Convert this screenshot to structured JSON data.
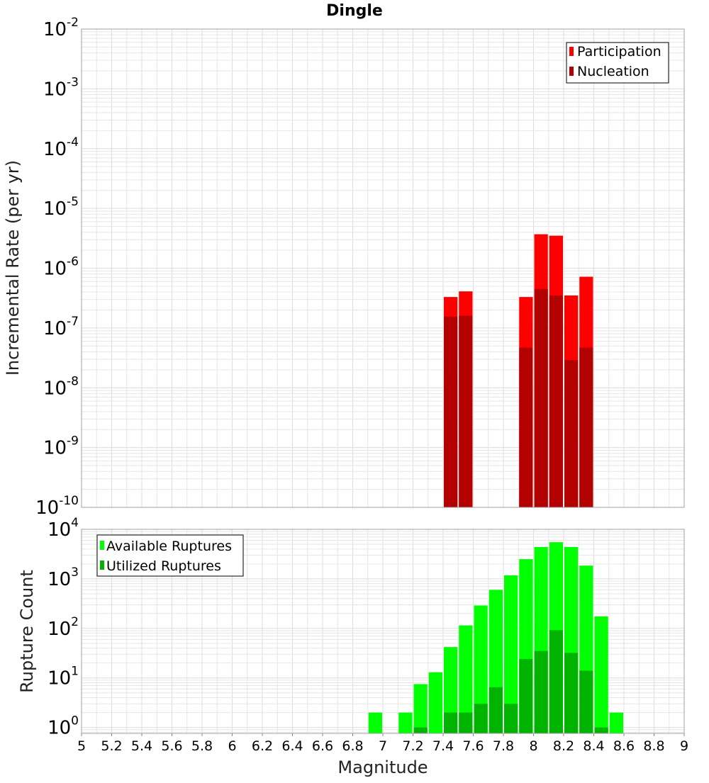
{
  "title": "Dingle",
  "colors": {
    "participation": "#ff0000",
    "nucleation": "#b30000",
    "available": "#00ff00",
    "utilized": "#00b300"
  },
  "chart_data": [
    {
      "type": "bar",
      "scale": "log",
      "ylabel": "Incremental Rate (per yr)",
      "ylim_exponents": [
        -10,
        -2
      ],
      "ytick_exponents": [
        -2,
        -3,
        -4,
        -5,
        -6,
        -7,
        -8,
        -9,
        -10
      ],
      "xlim": [
        5,
        9
      ],
      "bin_width": 0.1,
      "legend_position": "top-right",
      "series": [
        {
          "name": "Participation",
          "x": [
            7.45,
            7.55,
            7.95,
            8.05,
            8.15,
            8.25,
            8.35
          ],
          "values": [
            3.3e-07,
            4.1e-07,
            3.3e-07,
            3.7e-06,
            3.5e-06,
            3.5e-07,
            7.2e-07
          ]
        },
        {
          "name": "Nucleation",
          "x": [
            7.45,
            7.55,
            7.95,
            8.05,
            8.15,
            8.25,
            8.35
          ],
          "values": [
            1.55e-07,
            1.6e-07,
            4.7e-08,
            4.5e-07,
            3.5e-07,
            2.9e-08,
            4.7e-08
          ]
        }
      ]
    },
    {
      "type": "bar",
      "scale": "log",
      "ylabel": "Rupture Count",
      "xlabel": "Magnitude",
      "ylim_exponents": [
        -0.12,
        4
      ],
      "ytick_exponents": [
        4,
        3,
        2,
        1,
        0
      ],
      "xlim": [
        5,
        9
      ],
      "xticks": [
        "5",
        "5.2",
        "5.4",
        "5.6",
        "5.8",
        "6",
        "6.2",
        "6.4",
        "6.6",
        "6.8",
        "7",
        "7.2",
        "7.4",
        "7.6",
        "7.8",
        "8",
        "8.2",
        "8.4",
        "8.6",
        "8.8",
        "9"
      ],
      "bin_width": 0.1,
      "legend_position": "top-left",
      "series": [
        {
          "name": "Available Ruptures",
          "x": [
            6.95,
            7.15,
            7.25,
            7.35,
            7.45,
            7.55,
            7.65,
            7.75,
            7.85,
            7.95,
            8.05,
            8.15,
            8.25,
            8.35,
            8.45,
            8.55
          ],
          "values": [
            2,
            2,
            7.5,
            13,
            42,
            115,
            290,
            600,
            1180,
            2500,
            4400,
            5500,
            4400,
            1850,
            175,
            2
          ]
        },
        {
          "name": "Utilized Ruptures",
          "x": [
            7.25,
            7.45,
            7.55,
            7.65,
            7.75,
            7.85,
            7.95,
            8.05,
            8.15,
            8.25,
            8.35,
            8.45
          ],
          "values": [
            1,
            2,
            2,
            3,
            6.5,
            3,
            24,
            35,
            92,
            32,
            14,
            1
          ]
        }
      ]
    }
  ]
}
